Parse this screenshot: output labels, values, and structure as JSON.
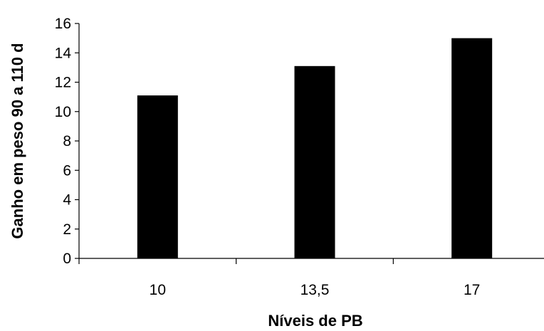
{
  "chart_data": {
    "type": "bar",
    "categories": [
      "10",
      "13,5",
      "17"
    ],
    "values": [
      11.1,
      13.1,
      15.0
    ],
    "title": "",
    "xlabel": "Níveis de PB",
    "ylabel": "Ganho em peso 90 a 110 d",
    "ylim": [
      0,
      16
    ],
    "yticks": [
      0,
      2,
      4,
      6,
      8,
      10,
      12,
      14,
      16
    ],
    "grid": false,
    "legend": "none",
    "bar_color": "#000000",
    "axis_color": "#000000"
  }
}
